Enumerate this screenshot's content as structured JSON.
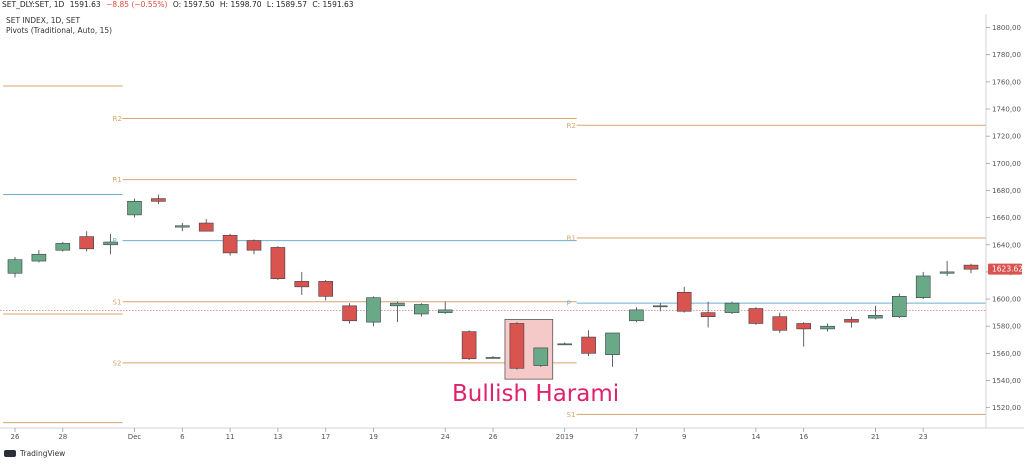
{
  "header": {
    "symbol": "SET_DLY:SET, 1D",
    "last": "1591.63",
    "change": "−8.85 (−0.55%)",
    "open": "O: 1597.50",
    "high": "H: 1598.70",
    "low": "L: 1589.57",
    "close": "C: 1591.63"
  },
  "legend": {
    "title": "SET INDEX, 1D, SET",
    "indicator": "Pivots (Traditional, Auto, 15)"
  },
  "annotation": {
    "text": "Bullish Harami",
    "color": "#e0216e",
    "box_fill": "#f6c9c9"
  },
  "footer": {
    "brand": "TradingView"
  },
  "price_tag": {
    "value": "1623.62",
    "color": "#d9534f"
  },
  "colors": {
    "up": "#6aa987",
    "down": "#d9534f",
    "pivot_line": "#d4a66a",
    "p_line": "#6bb0cf"
  },
  "chart_data": {
    "type": "candlestick",
    "ylim": [
      1505,
      1810
    ],
    "y_ticks": [
      "1520,00",
      "1540,00",
      "1560,00",
      "1580,00",
      "1600,00",
      "1620,00",
      "1640,00",
      "1660,00",
      "1680,00",
      "1700,00",
      "1720,00",
      "1740,00",
      "1760,00",
      "1780,00",
      "1800,00"
    ],
    "x_ticks": [
      {
        "label": "26",
        "bar": 0
      },
      {
        "label": "28",
        "bar": 2
      },
      {
        "label": "Dec",
        "bar": 5
      },
      {
        "label": "6",
        "bar": 7
      },
      {
        "label": "11",
        "bar": 9
      },
      {
        "label": "13",
        "bar": 11
      },
      {
        "label": "17",
        "bar": 13
      },
      {
        "label": "19",
        "bar": 15
      },
      {
        "label": "24",
        "bar": 18
      },
      {
        "label": "26",
        "bar": 20
      },
      {
        "label": "2019",
        "bar": 23
      },
      {
        "label": "7",
        "bar": 26
      },
      {
        "label": "9",
        "bar": 28
      },
      {
        "label": "14",
        "bar": 31
      },
      {
        "label": "16",
        "bar": 33
      },
      {
        "label": "21",
        "bar": 36
      },
      {
        "label": "23",
        "bar": 38
      }
    ],
    "candles": [
      {
        "o": 1619,
        "h": 1631,
        "l": 1616,
        "c": 1629
      },
      {
        "o": 1628,
        "h": 1636,
        "l": 1627,
        "c": 1633
      },
      {
        "o": 1636,
        "h": 1642,
        "l": 1635,
        "c": 1641
      },
      {
        "o": 1646,
        "h": 1650,
        "l": 1635,
        "c": 1637
      },
      {
        "o": 1640,
        "h": 1648,
        "l": 1633,
        "c": 1642
      },
      {
        "o": 1662,
        "h": 1674,
        "l": 1660,
        "c": 1672
      },
      {
        "o": 1674,
        "h": 1677,
        "l": 1670,
        "c": 1672
      },
      {
        "o": 1653,
        "h": 1656,
        "l": 1650,
        "c": 1654
      },
      {
        "o": 1656,
        "h": 1659,
        "l": 1650,
        "c": 1650
      },
      {
        "o": 1647,
        "h": 1648,
        "l": 1632,
        "c": 1634
      },
      {
        "o": 1643,
        "h": 1644,
        "l": 1633,
        "c": 1636
      },
      {
        "o": 1638,
        "h": 1639,
        "l": 1614,
        "c": 1615
      },
      {
        "o": 1613,
        "h": 1620,
        "l": 1603,
        "c": 1609
      },
      {
        "o": 1613,
        "h": 1614,
        "l": 1599,
        "c": 1602
      },
      {
        "o": 1595,
        "h": 1597,
        "l": 1582,
        "c": 1584
      },
      {
        "o": 1583,
        "h": 1602,
        "l": 1580,
        "c": 1601
      },
      {
        "o": 1595,
        "h": 1598,
        "l": 1583,
        "c": 1597
      },
      {
        "o": 1589,
        "h": 1597,
        "l": 1587,
        "c": 1596
      },
      {
        "o": 1590,
        "h": 1598,
        "l": 1589,
        "c": 1592
      },
      {
        "o": 1576,
        "h": 1577,
        "l": 1555,
        "c": 1556
      },
      {
        "o": 1557,
        "h": 1558,
        "l": 1556,
        "c": 1557
      },
      {
        "o": 1582,
        "h": 1583,
        "l": 1548,
        "c": 1549
      },
      {
        "o": 1551,
        "h": 1564,
        "l": 1550,
        "c": 1564
      },
      {
        "o": 1567,
        "h": 1568,
        "l": 1567,
        "c": 1567
      },
      {
        "o": 1572,
        "h": 1577,
        "l": 1558,
        "c": 1560
      },
      {
        "o": 1559,
        "h": 1575,
        "l": 1550,
        "c": 1575
      },
      {
        "o": 1584,
        "h": 1594,
        "l": 1583,
        "c": 1592
      },
      {
        "o": 1595,
        "h": 1597,
        "l": 1591,
        "c": 1595
      },
      {
        "o": 1605,
        "h": 1609,
        "l": 1590,
        "c": 1591
      },
      {
        "o": 1590,
        "h": 1598,
        "l": 1579,
        "c": 1587
      },
      {
        "o": 1590,
        "h": 1598,
        "l": 1589,
        "c": 1597
      },
      {
        "o": 1593,
        "h": 1594,
        "l": 1581,
        "c": 1582
      },
      {
        "o": 1587,
        "h": 1590,
        "l": 1575,
        "c": 1577
      },
      {
        "o": 1582,
        "h": 1583,
        "l": 1565,
        "c": 1578
      },
      {
        "o": 1578,
        "h": 1582,
        "l": 1576,
        "c": 1580
      },
      {
        "o": 1585,
        "h": 1587,
        "l": 1579,
        "c": 1583
      },
      {
        "o": 1586,
        "h": 1595,
        "l": 1585,
        "c": 1588
      },
      {
        "o": 1587,
        "h": 1604,
        "l": 1586,
        "c": 1602
      },
      {
        "o": 1601,
        "h": 1620,
        "l": 1600,
        "c": 1617
      },
      {
        "o": 1619,
        "h": 1628,
        "l": 1617,
        "c": 1620
      },
      {
        "o": 1625,
        "h": 1626,
        "l": 1619,
        "c": 1622
      }
    ],
    "pivot_periods": [
      {
        "from_bar": -0.5,
        "to_bar": 4.5,
        "levels": [
          {
            "name": "",
            "value": 1757,
            "kind": "r"
          },
          {
            "name": "",
            "value": 1677,
            "kind": "p"
          },
          {
            "name": "",
            "value": 1589,
            "kind": "r"
          },
          {
            "name": "",
            "value": 1509,
            "kind": "r"
          }
        ]
      },
      {
        "from_bar": 4.5,
        "to_bar": 23.5,
        "levels": [
          {
            "name": "R2",
            "value": 1733,
            "kind": "r"
          },
          {
            "name": "R1",
            "value": 1688,
            "kind": "r"
          },
          {
            "name": "P",
            "value": 1643,
            "kind": "p"
          },
          {
            "name": "S1",
            "value": 1598,
            "kind": "r"
          },
          {
            "name": "S2",
            "value": 1553,
            "kind": "r"
          }
        ]
      },
      {
        "from_bar": 23.5,
        "to_bar": 41.5,
        "levels": [
          {
            "name": "R2",
            "value": 1728,
            "kind": "r"
          },
          {
            "name": "R1",
            "value": 1645,
            "kind": "r"
          },
          {
            "name": "P",
            "value": 1597,
            "kind": "p"
          },
          {
            "name": "S1",
            "value": 1515,
            "kind": "r"
          }
        ]
      }
    ],
    "reference_lines": [
      1591.5
    ],
    "harami_box": {
      "from_bar": 20.5,
      "to_bar": 22.5,
      "top": 1585,
      "bottom": 1541
    }
  }
}
